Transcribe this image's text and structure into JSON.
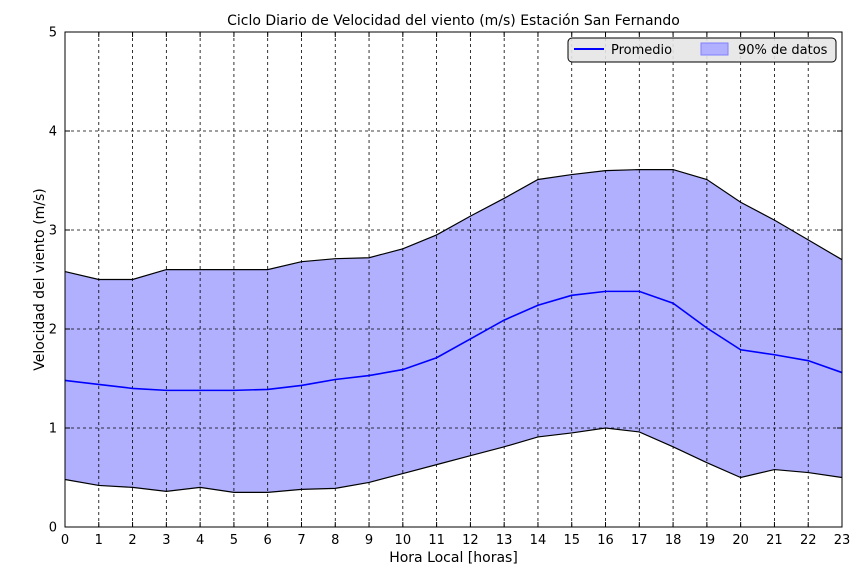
{
  "chart_data": {
    "type": "area",
    "title": "Ciclo Diario de Velocidad del viento (m/s) Estación San Fernando",
    "xlabel": "Hora Local [horas]",
    "ylabel": "Velocidad del viento (m/s)",
    "xlim": [
      0,
      23
    ],
    "ylim": [
      0,
      5
    ],
    "x": [
      0,
      1,
      2,
      3,
      4,
      5,
      6,
      7,
      8,
      9,
      10,
      11,
      12,
      13,
      14,
      15,
      16,
      17,
      18,
      19,
      20,
      21,
      22,
      23
    ],
    "xticks": [
      "0",
      "1",
      "2",
      "3",
      "4",
      "5",
      "6",
      "7",
      "8",
      "9",
      "10",
      "11",
      "12",
      "13",
      "14",
      "15",
      "16",
      "17",
      "18",
      "19",
      "20",
      "21",
      "22",
      "23"
    ],
    "yticks": [
      "0",
      "1",
      "2",
      "3",
      "4",
      "5"
    ],
    "grid": true,
    "legend_position": "top-right",
    "series": [
      {
        "name": "Promedio",
        "kind": "line",
        "color": "#0000ff",
        "values": [
          1.48,
          1.44,
          1.4,
          1.38,
          1.38,
          1.38,
          1.39,
          1.43,
          1.49,
          1.53,
          1.59,
          1.71,
          1.9,
          2.09,
          2.24,
          2.34,
          2.38,
          2.38,
          2.26,
          2.01,
          1.79,
          1.74,
          1.68,
          1.56
        ]
      },
      {
        "name": "90% de datos",
        "kind": "band",
        "color": "#b0b0ff",
        "upper": [
          2.58,
          2.5,
          2.5,
          2.6,
          2.6,
          2.6,
          2.6,
          2.68,
          2.71,
          2.72,
          2.81,
          2.95,
          3.14,
          3.32,
          3.51,
          3.56,
          3.6,
          3.61,
          3.61,
          3.51,
          3.28,
          3.1,
          2.9,
          2.7
        ],
        "lower": [
          0.48,
          0.42,
          0.4,
          0.36,
          0.4,
          0.35,
          0.35,
          0.38,
          0.39,
          0.45,
          0.54,
          0.63,
          0.72,
          0.81,
          0.91,
          0.95,
          1.0,
          0.96,
          0.81,
          0.65,
          0.5,
          0.58,
          0.55,
          0.5
        ]
      }
    ]
  }
}
